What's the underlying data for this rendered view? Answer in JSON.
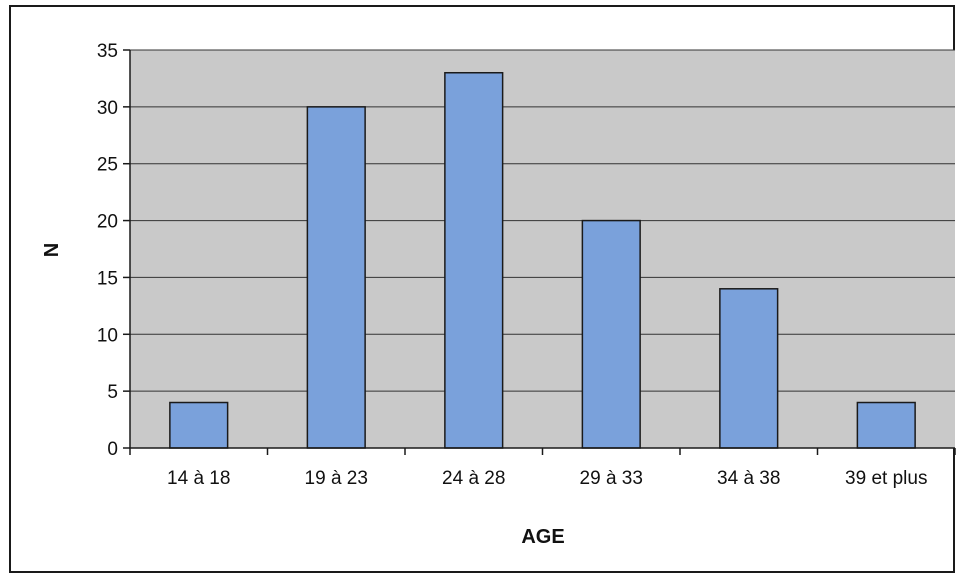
{
  "chart_data": {
    "type": "bar",
    "categories": [
      "14 à 18",
      "19 à 23",
      "24 à 28",
      "29 à 33",
      "34 à 38",
      "39 et plus"
    ],
    "values": [
      4,
      30,
      33,
      20,
      14,
      4
    ],
    "title": "",
    "xlabel": "AGE",
    "ylabel": "N",
    "ylim": [
      0,
      35
    ],
    "yticks": [
      0,
      5,
      10,
      15,
      20,
      25,
      30,
      35
    ],
    "grid": true,
    "legend": "none",
    "colors": {
      "bar_fill": "#7aa1db",
      "bar_stroke": "#1a1a1a",
      "plot_background": "#c9c9c9",
      "gridline": "#333333",
      "frame": "#1a1a1a"
    }
  }
}
